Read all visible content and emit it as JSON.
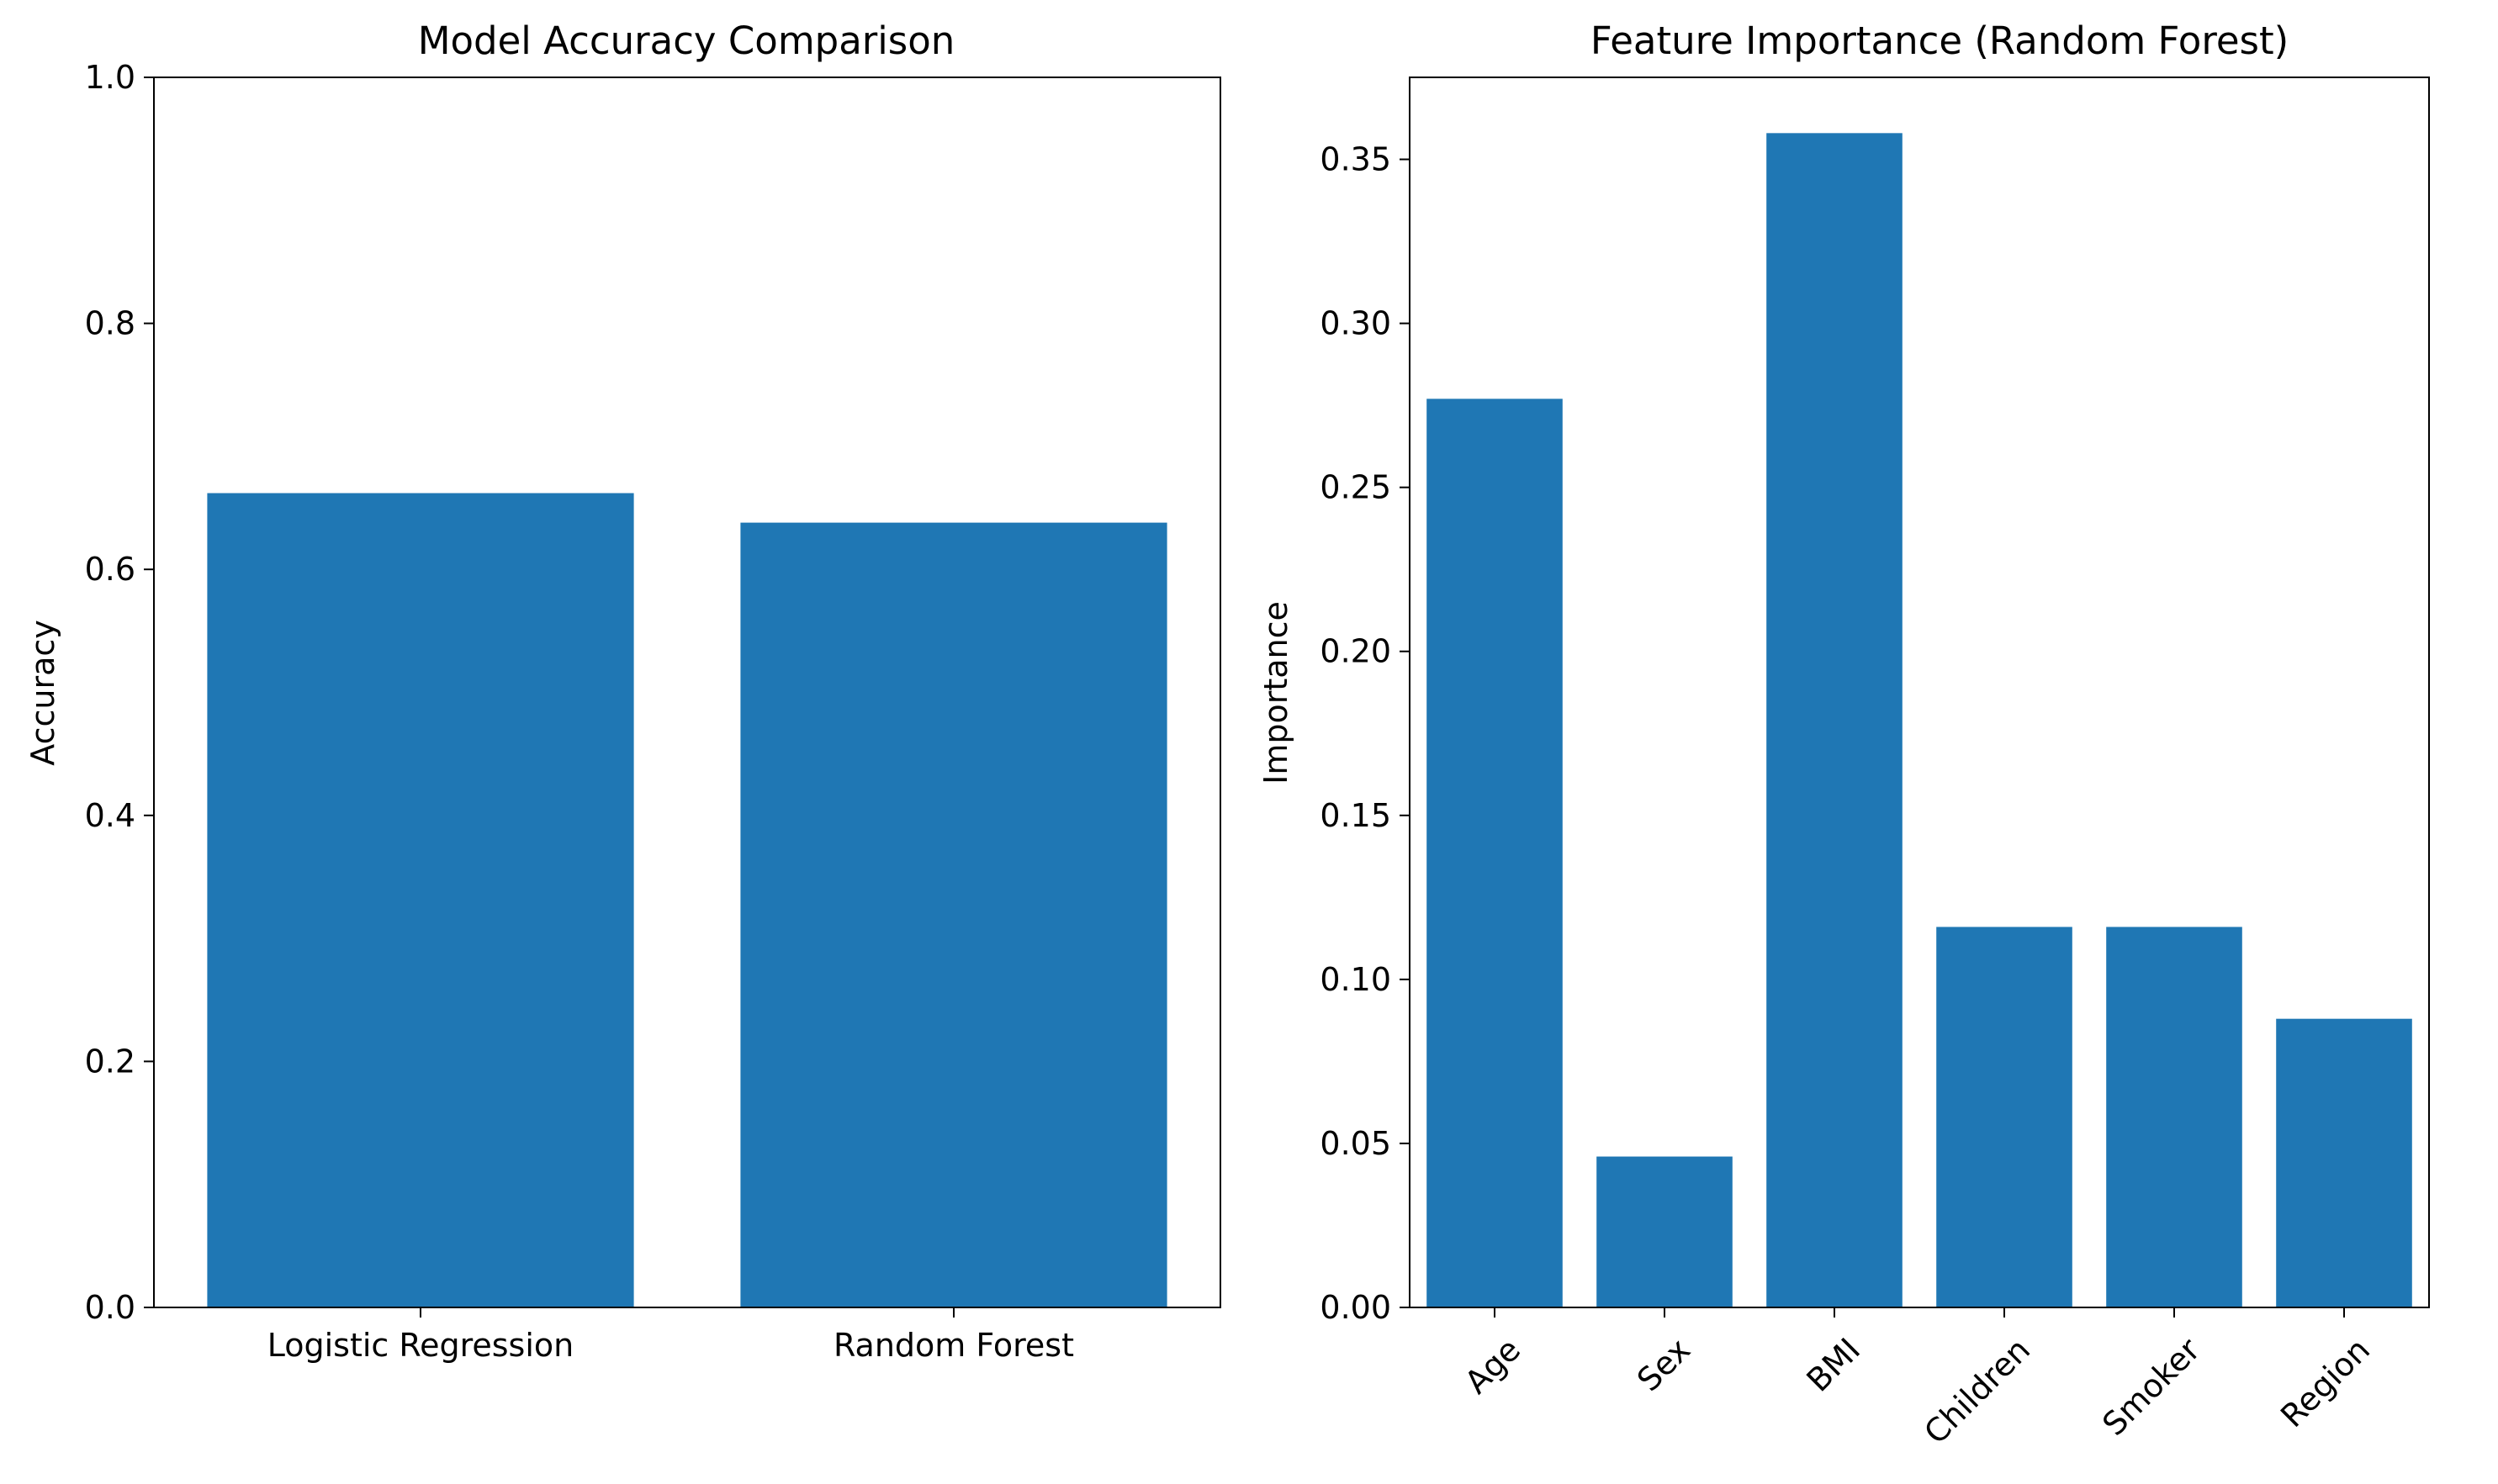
{
  "chart_data": [
    {
      "type": "bar",
      "title": "Model Accuracy Comparison",
      "xlabel": "",
      "ylabel": "Accuracy",
      "categories": [
        "Logistic Regression",
        "Random Forest"
      ],
      "values": [
        0.662,
        0.638
      ],
      "ylim": [
        0,
        1.0
      ],
      "yticks": [
        0.0,
        0.2,
        0.4,
        0.6,
        0.8,
        1.0
      ],
      "ytick_labels": [
        "0.0",
        "0.2",
        "0.4",
        "0.6",
        "0.8",
        "1.0"
      ],
      "grid": false,
      "bar_color": "#1f77b4"
    },
    {
      "type": "bar",
      "title": "Feature Importance (Random Forest)",
      "xlabel": "",
      "ylabel": "Importance",
      "categories": [
        "Age",
        "Sex",
        "BMI",
        "Children",
        "Smoker",
        "Region"
      ],
      "values": [
        0.277,
        0.046,
        0.358,
        0.116,
        0.116,
        0.088
      ],
      "ylim": [
        0,
        0.375
      ],
      "yticks": [
        0.0,
        0.05,
        0.1,
        0.15,
        0.2,
        0.25,
        0.3,
        0.35
      ],
      "ytick_labels": [
        "0.00",
        "0.05",
        "0.10",
        "0.15",
        "0.20",
        "0.25",
        "0.30",
        "0.35"
      ],
      "xtick_rotation": 45,
      "grid": false,
      "bar_color": "#1f77b4"
    }
  ]
}
